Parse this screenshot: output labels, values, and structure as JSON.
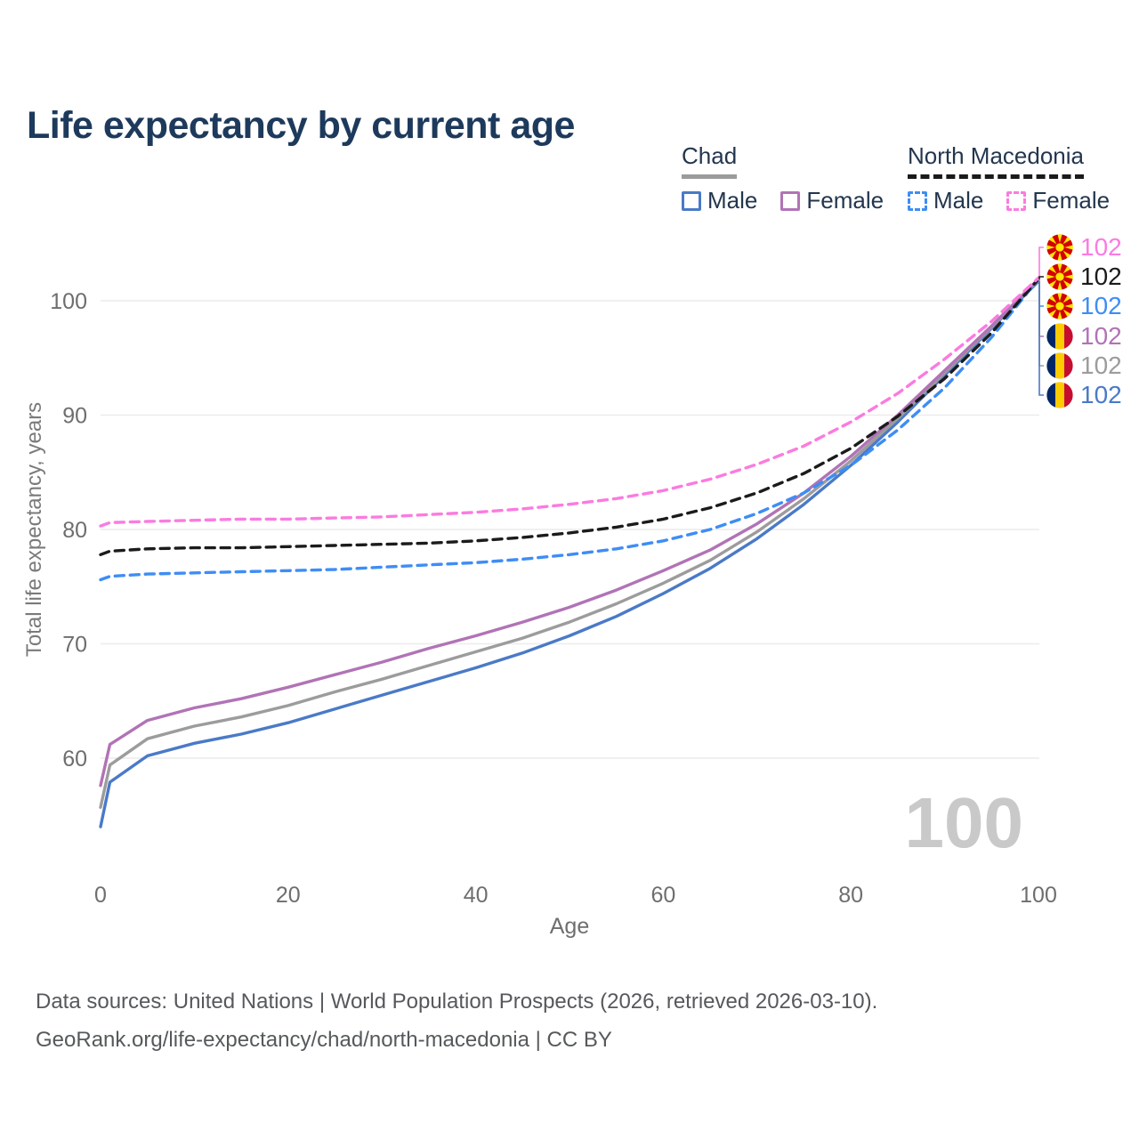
{
  "title": "Life expectancy by current age",
  "legend": {
    "chad": {
      "name": "Chad",
      "items": [
        {
          "label": "Male",
          "color": "#4a7ac7",
          "dash": false
        },
        {
          "label": "Female",
          "color": "#b173b6",
          "dash": false
        }
      ]
    },
    "north_macedonia": {
      "name": "North Macedonia",
      "items": [
        {
          "label": "Male",
          "color": "#3e8df5",
          "dash": true
        },
        {
          "label": "Female",
          "color": "#fb7be0",
          "dash": true
        }
      ]
    }
  },
  "watermark_age": "100",
  "right_labels": [
    {
      "flag": "north-macedonia",
      "value": "102",
      "color": "#fb7be0"
    },
    {
      "flag": "north-macedonia",
      "value": "102",
      "color": "#1b1b1b"
    },
    {
      "flag": "north-macedonia",
      "value": "102",
      "color": "#3e8df5"
    },
    {
      "flag": "chad",
      "value": "102",
      "color": "#b173b6"
    },
    {
      "flag": "chad",
      "value": "102",
      "color": "#9c9c9c"
    },
    {
      "flag": "chad",
      "value": "102",
      "color": "#4a7ac7"
    }
  ],
  "footer": {
    "line1": "Data sources: United Nations | World Population Prospects (2026, retrieved 2026-03-10).",
    "line2": "GeoRank.org/life-expectancy/chad/north-macedonia | CC BY"
  },
  "chart_data": {
    "type": "line",
    "title": "Life expectancy by current age",
    "xlabel": "Age",
    "ylabel": "Total life expectancy, years",
    "x_ticks": [
      0,
      20,
      40,
      60,
      80,
      100
    ],
    "y_ticks": [
      60,
      70,
      80,
      90,
      100
    ],
    "xlim": [
      0,
      100
    ],
    "ylim": [
      53,
      103
    ],
    "grid": "horizontal",
    "legend_position": "top-right",
    "x": [
      0,
      1,
      5,
      10,
      15,
      20,
      25,
      30,
      35,
      40,
      45,
      50,
      55,
      60,
      65,
      70,
      75,
      80,
      85,
      90,
      95,
      100
    ],
    "series": [
      {
        "name": "Chad Male",
        "color": "#4a7ac7",
        "dash": false,
        "values": [
          54.0,
          57.9,
          60.2,
          61.3,
          62.1,
          63.1,
          64.3,
          65.5,
          66.7,
          67.9,
          69.2,
          70.7,
          72.4,
          74.4,
          76.6,
          79.2,
          82.2,
          85.6,
          89.4,
          93.5,
          97.6,
          101.7
        ]
      },
      {
        "name": "Chad Both sexes",
        "color": "#9c9c9c",
        "dash": false,
        "values": [
          55.7,
          59.4,
          61.7,
          62.8,
          63.6,
          64.6,
          65.8,
          66.9,
          68.1,
          69.3,
          70.5,
          71.9,
          73.5,
          75.3,
          77.3,
          79.8,
          82.7,
          86.0,
          89.7,
          93.7,
          97.7,
          101.8
        ]
      },
      {
        "name": "Chad Female",
        "color": "#b173b6",
        "dash": false,
        "values": [
          57.6,
          61.2,
          63.3,
          64.4,
          65.2,
          66.2,
          67.3,
          68.4,
          69.6,
          70.7,
          71.9,
          73.2,
          74.7,
          76.4,
          78.2,
          80.5,
          83.2,
          86.4,
          90.0,
          93.9,
          97.8,
          101.9
        ]
      },
      {
        "name": "North Macedonia Male",
        "color": "#3e8df5",
        "dash": true,
        "values": [
          75.6,
          75.9,
          76.1,
          76.2,
          76.3,
          76.4,
          76.5,
          76.7,
          76.9,
          77.1,
          77.4,
          77.8,
          78.3,
          79.0,
          80.0,
          81.4,
          83.2,
          85.6,
          88.7,
          92.4,
          96.8,
          101.9
        ]
      },
      {
        "name": "North Macedonia Both sexes",
        "color": "#1b1b1b",
        "dash": true,
        "values": [
          77.8,
          78.1,
          78.3,
          78.4,
          78.4,
          78.5,
          78.6,
          78.7,
          78.8,
          79.0,
          79.3,
          79.7,
          80.2,
          80.9,
          81.9,
          83.2,
          84.9,
          87.1,
          89.9,
          93.2,
          97.2,
          101.9
        ]
      },
      {
        "name": "North Macedonia Female",
        "color": "#fb7be0",
        "dash": true,
        "values": [
          80.3,
          80.6,
          80.7,
          80.8,
          80.9,
          80.9,
          81.0,
          81.1,
          81.3,
          81.5,
          81.8,
          82.2,
          82.7,
          83.4,
          84.4,
          85.7,
          87.3,
          89.4,
          91.9,
          94.9,
          98.2,
          102.0
        ]
      }
    ],
    "end_label_value": "102"
  }
}
